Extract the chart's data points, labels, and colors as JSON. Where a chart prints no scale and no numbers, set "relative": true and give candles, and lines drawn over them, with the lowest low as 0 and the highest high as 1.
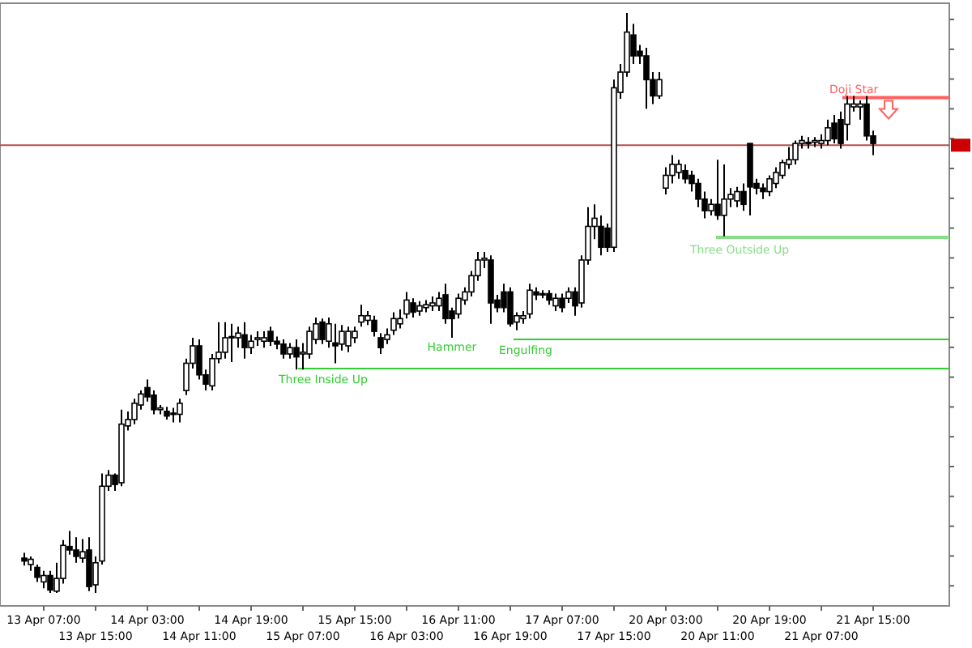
{
  "chart_data": {
    "type": "candlestick",
    "relative": true,
    "tick_labels": "x",
    "categories": [
      null,
      null,
      null,
      "13 Apr 07:00",
      null,
      null,
      null,
      null,
      null,
      null,
      null,
      "13 Apr 15:00",
      null,
      null,
      null,
      null,
      null,
      null,
      null,
      "14 Apr 03:00",
      null,
      null,
      null,
      null,
      null,
      null,
      null,
      "14 Apr 11:00",
      null,
      null,
      null,
      null,
      null,
      null,
      null,
      "14 Apr 19:00",
      null,
      null,
      null,
      null,
      null,
      null,
      null,
      "15 Apr 07:00",
      null,
      null,
      null,
      null,
      null,
      null,
      null,
      "15 Apr 15:00",
      null,
      null,
      null,
      null,
      null,
      null,
      null,
      "16 Apr 03:00",
      null,
      null,
      null,
      null,
      null,
      null,
      null,
      "16 Apr 11:00",
      null,
      null,
      null,
      null,
      null,
      null,
      null,
      "16 Apr 19:00",
      null,
      null,
      null,
      null,
      null,
      null,
      null,
      "17 Apr 07:00",
      null,
      null,
      null,
      null,
      null,
      null,
      null,
      "17 Apr 15:00",
      null,
      null,
      null,
      null,
      null,
      null,
      null,
      "20 Apr 03:00",
      null,
      null,
      null,
      null,
      null,
      null,
      null,
      "20 Apr 11:00",
      null,
      null,
      null,
      null,
      null,
      null,
      null,
      "20 Apr 19:00",
      null,
      null,
      null,
      null,
      null,
      null,
      null,
      "21 Apr 07:00",
      null,
      null,
      null,
      null,
      null,
      null,
      null,
      "21 Apr 15:00"
    ],
    "ohlc": [
      [
        0.06,
        0.069,
        0.047,
        0.055
      ],
      [
        0.049,
        0.063,
        0.038,
        0.058
      ],
      [
        0.044,
        0.049,
        0.019,
        0.027
      ],
      [
        0.019,
        0.038,
        0.008,
        0.03
      ],
      [
        0.03,
        0.038,
        0,
        0.005
      ],
      [
        0.003,
        0.052,
        0,
        0.025
      ],
      [
        0.025,
        0.091,
        0.016,
        0.082
      ],
      [
        0.08,
        0.107,
        0.066,
        0.074
      ],
      [
        0.074,
        0.096,
        0.052,
        0.063
      ],
      [
        0.06,
        0.093,
        0.052,
        0.071
      ],
      [
        0.074,
        0.096,
        0.003,
        0.011
      ],
      [
        0.014,
        0.063,
        0,
        0.052
      ],
      [
        0.055,
        0.206,
        0.049,
        0.184
      ],
      [
        0.184,
        0.212,
        0.176,
        0.203
      ],
      [
        0.203,
        0.206,
        0.176,
        0.187
      ],
      [
        0.19,
        0.316,
        0.184,
        0.291
      ],
      [
        0.288,
        0.313,
        0.28,
        0.299
      ],
      [
        0.299,
        0.335,
        0.291,
        0.327
      ],
      [
        0.324,
        0.349,
        0.316,
        0.343
      ],
      [
        0.354,
        0.368,
        0.33,
        0.338
      ],
      [
        0.341,
        0.349,
        0.308,
        0.316
      ],
      [
        0.316,
        0.324,
        0.308,
        0.319
      ],
      [
        0.313,
        0.321,
        0.299,
        0.305
      ],
      [
        0.31,
        0.319,
        0.294,
        0.31
      ],
      [
        0.308,
        0.335,
        0.294,
        0.327
      ],
      [
        0.349,
        0.404,
        0.341,
        0.396
      ],
      [
        0.396,
        0.44,
        0.387,
        0.426
      ],
      [
        0.426,
        0.437,
        0.368,
        0.376
      ],
      [
        0.376,
        0.385,
        0.349,
        0.36
      ],
      [
        0.357,
        0.412,
        0.349,
        0.404
      ],
      [
        0.404,
        0.467,
        0.396,
        0.415
      ],
      [
        0.415,
        0.467,
        0.404,
        0.44
      ],
      [
        0.44,
        0.464,
        0.398,
        0.442
      ],
      [
        0.44,
        0.459,
        0.423,
        0.448
      ],
      [
        0.445,
        0.467,
        0.404,
        0.423
      ],
      [
        0.423,
        0.445,
        0.412,
        0.434
      ],
      [
        0.437,
        0.451,
        0.426,
        0.44
      ],
      [
        0.434,
        0.451,
        0.423,
        0.44
      ],
      [
        0.451,
        0.459,
        0.426,
        0.434
      ],
      [
        0.434,
        0.442,
        0.42,
        0.429
      ],
      [
        0.429,
        0.437,
        0.404,
        0.412
      ],
      [
        0.412,
        0.431,
        0.404,
        0.423
      ],
      [
        0.423,
        0.437,
        0.385,
        0.407
      ],
      [
        0.412,
        0.431,
        0.385,
        0.415
      ],
      [
        0.412,
        0.459,
        0.404,
        0.451
      ],
      [
        0.437,
        0.475,
        0.429,
        0.464
      ],
      [
        0.467,
        0.473,
        0.429,
        0.437
      ],
      [
        0.434,
        0.475,
        0.423,
        0.464
      ],
      [
        0.431,
        0.464,
        0.396,
        0.426
      ],
      [
        0.429,
        0.462,
        0.418,
        0.451
      ],
      [
        0.426,
        0.459,
        0.415,
        0.451
      ],
      [
        0.44,
        0.459,
        0.431,
        0.451
      ],
      [
        0.467,
        0.497,
        0.459,
        0.478
      ],
      [
        0.47,
        0.486,
        0.462,
        0.478
      ],
      [
        0.47,
        0.478,
        0.442,
        0.451
      ],
      [
        0.44,
        0.448,
        0.412,
        0.423
      ],
      [
        0.437,
        0.456,
        0.429,
        0.445
      ],
      [
        0.453,
        0.484,
        0.445,
        0.473
      ],
      [
        0.464,
        0.489,
        0.456,
        0.473
      ],
      [
        0.481,
        0.519,
        0.473,
        0.505
      ],
      [
        0.5,
        0.508,
        0.475,
        0.484
      ],
      [
        0.486,
        0.503,
        0.478,
        0.495
      ],
      [
        0.492,
        0.505,
        0.484,
        0.497
      ],
      [
        0.495,
        0.511,
        0.486,
        0.5
      ],
      [
        0.495,
        0.519,
        0.486,
        0.508
      ],
      [
        0.514,
        0.533,
        0.464,
        0.473
      ],
      [
        0.486,
        0.492,
        0.44,
        0.473
      ],
      [
        0.481,
        0.516,
        0.473,
        0.508
      ],
      [
        0.505,
        0.527,
        0.497,
        0.519
      ],
      [
        0.519,
        0.555,
        0.511,
        0.547
      ],
      [
        0.547,
        0.588,
        0.538,
        0.574
      ],
      [
        0.574,
        0.588,
        0.56,
        0.577
      ],
      [
        0.574,
        0.582,
        0.464,
        0.5
      ],
      [
        0.505,
        0.514,
        0.484,
        0.492
      ],
      [
        0.519,
        0.533,
        0.484,
        0.492
      ],
      [
        0.519,
        0.527,
        0.459,
        0.464
      ],
      [
        0.467,
        0.484,
        0.453,
        0.478
      ],
      [
        0.473,
        0.486,
        0.464,
        0.478
      ],
      [
        0.481,
        0.533,
        0.473,
        0.522
      ],
      [
        0.519,
        0.527,
        0.505,
        0.514
      ],
      [
        0.516,
        0.522,
        0.508,
        0.516
      ],
      [
        0.516,
        0.522,
        0.497,
        0.505
      ],
      [
        0.495,
        0.516,
        0.486,
        0.508
      ],
      [
        0.508,
        0.516,
        0.484,
        0.492
      ],
      [
        0.508,
        0.527,
        0.5,
        0.519
      ],
      [
        0.519,
        0.527,
        0.478,
        0.495
      ],
      [
        0.5,
        0.582,
        0.492,
        0.574
      ],
      [
        0.574,
        0.665,
        0.566,
        0.632
      ],
      [
        0.632,
        0.67,
        0.61,
        0.646
      ],
      [
        0.632,
        0.651,
        0.582,
        0.596
      ],
      [
        0.629,
        0.637,
        0.588,
        0.596
      ],
      [
        0.596,
        0.885,
        0.588,
        0.871
      ],
      [
        0.863,
        0.912,
        0.852,
        0.898
      ],
      [
        0.898,
        1,
        0.89,
        0.967
      ],
      [
        0.962,
        0.981,
        0.912,
        0.926
      ],
      [
        0.934,
        0.945,
        0.912,
        0.926
      ],
      [
        0.926,
        0.94,
        0.835,
        0.885
      ],
      [
        0.885,
        0.898,
        0.843,
        0.857
      ],
      [
        0.857,
        0.898,
        0.852,
        0.885
      ],
      [
        0.698,
        0.734,
        0.687,
        0.72
      ],
      [
        0.72,
        0.755,
        0.706,
        0.739
      ],
      [
        0.725,
        0.747,
        0.714,
        0.739
      ],
      [
        0.728,
        0.739,
        0.706,
        0.714
      ],
      [
        0.72,
        0.728,
        0.692,
        0.706
      ],
      [
        0.706,
        0.714,
        0.665,
        0.679
      ],
      [
        0.679,
        0.692,
        0.646,
        0.659
      ],
      [
        0.659,
        0.679,
        0.651,
        0.67
      ],
      [
        0.67,
        0.747,
        0.643,
        0.651
      ],
      [
        0.651,
        0.739,
        0.615,
        0.679
      ],
      [
        0.679,
        0.698,
        0.665,
        0.687
      ],
      [
        0.676,
        0.7,
        0.665,
        0.692
      ],
      [
        0.692,
        0.706,
        0.659,
        0.67
      ],
      [
        0.775,
        0.775,
        0.651,
        0.7
      ],
      [
        0.706,
        0.714,
        0.687,
        0.698
      ],
      [
        0.698,
        0.706,
        0.679,
        0.692
      ],
      [
        0.692,
        0.72,
        0.684,
        0.714
      ],
      [
        0.706,
        0.734,
        0.698,
        0.725
      ],
      [
        0.72,
        0.747,
        0.714,
        0.742
      ],
      [
        0.739,
        0.769,
        0.731,
        0.747
      ],
      [
        0.747,
        0.78,
        0.739,
        0.775
      ],
      [
        0.775,
        0.788,
        0.766,
        0.78
      ],
      [
        0.775,
        0.786,
        0.766,
        0.777
      ],
      [
        0.777,
        0.786,
        0.769,
        0.78
      ],
      [
        0.775,
        0.791,
        0.766,
        0.78
      ],
      [
        0.78,
        0.816,
        0.772,
        0.802
      ],
      [
        0.81,
        0.824,
        0.775,
        0.783
      ],
      [
        0.816,
        0.83,
        0.766,
        0.775
      ],
      [
        0.808,
        0.857,
        0.78,
        0.843
      ],
      [
        0.838,
        0.857,
        0.83,
        0.843
      ],
      [
        0.838,
        0.849,
        0.816,
        0.843
      ],
      [
        0.843,
        0.857,
        0.78,
        0.788
      ],
      [
        0.788,
        0.797,
        0.755,
        0.775
      ]
    ],
    "ref_lines": [
      {
        "axis": "y",
        "value": 0.854,
        "label": "Doji Star",
        "color": "#ff6060"
      },
      {
        "axis": "y",
        "value": 0.772,
        "color": "#b05050"
      },
      {
        "axis": "y",
        "value": 0.613,
        "label": "Three Outside Up",
        "color": "#88dd88"
      },
      {
        "axis": "y",
        "value": 0.437,
        "label": "Engulfing",
        "color": "#33cc33"
      },
      {
        "axis": "y",
        "value": 0.387,
        "label": "Three Inside Up",
        "color": "#33cc33"
      }
    ],
    "annotations": [
      {
        "text": "Hammer",
        "y": 0.44
      }
    ]
  }
}
